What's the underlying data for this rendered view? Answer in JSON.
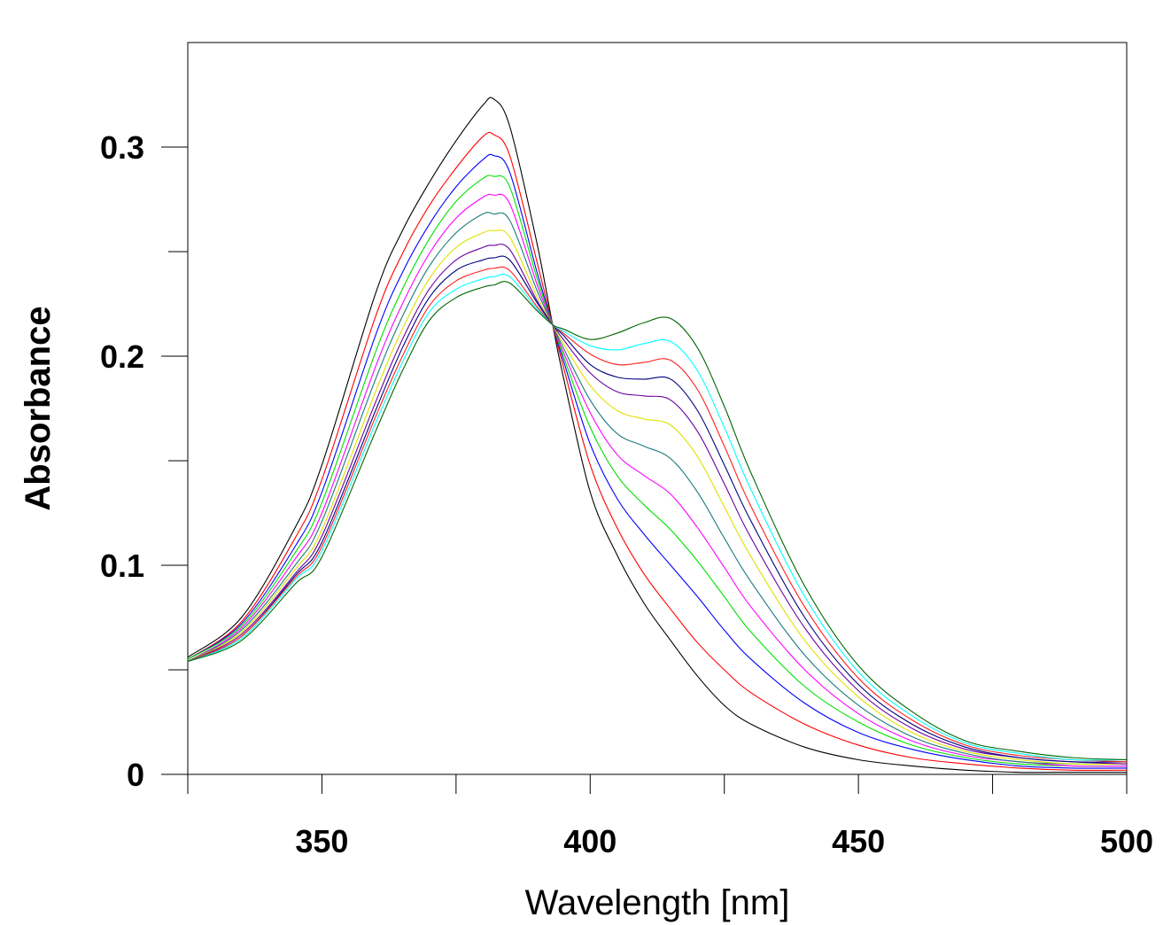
{
  "chart_data": {
    "type": "line",
    "title": "",
    "xlabel": "Wavelength [nm]",
    "ylabel": "Absorbance",
    "xlim": [
      325,
      500
    ],
    "ylim": [
      0,
      0.35
    ],
    "x_ticks": [
      350,
      400,
      450,
      500
    ],
    "x_tick_labels": [
      "350",
      "400",
      "450",
      "500"
    ],
    "y_ticks": [
      0,
      0.1,
      0.2,
      0.3
    ],
    "y_tick_labels": [
      "0",
      "0.1",
      "0.2",
      "0.3"
    ],
    "grid": false,
    "legend": "none",
    "x": [
      325,
      335,
      345,
      350,
      360,
      365,
      370,
      375,
      380,
      382,
      385,
      390,
      393,
      395,
      400,
      405,
      410,
      415,
      420,
      425,
      430,
      440,
      450,
      460,
      470,
      480,
      490,
      500
    ],
    "series": [
      {
        "color": "#000000",
        "values": [
          0.056,
          0.075,
          0.118,
          0.148,
          0.23,
          0.26,
          0.283,
          0.303,
          0.32,
          0.323,
          0.31,
          0.255,
          0.215,
          0.19,
          0.135,
          0.105,
          0.082,
          0.064,
          0.047,
          0.033,
          0.024,
          0.013,
          0.007,
          0.004,
          0.002,
          0.001,
          0.001,
          0.001
        ]
      },
      {
        "color": "#ff0000",
        "values": [
          0.055,
          0.073,
          0.113,
          0.141,
          0.219,
          0.249,
          0.272,
          0.29,
          0.305,
          0.306,
          0.296,
          0.246,
          0.215,
          0.195,
          0.148,
          0.118,
          0.096,
          0.079,
          0.063,
          0.05,
          0.039,
          0.024,
          0.014,
          0.008,
          0.005,
          0.003,
          0.002,
          0.002
        ]
      },
      {
        "color": "#0000ff",
        "values": [
          0.055,
          0.072,
          0.109,
          0.135,
          0.21,
          0.24,
          0.263,
          0.281,
          0.294,
          0.296,
          0.288,
          0.241,
          0.215,
          0.198,
          0.158,
          0.132,
          0.115,
          0.1,
          0.085,
          0.069,
          0.055,
          0.034,
          0.02,
          0.012,
          0.007,
          0.004,
          0.003,
          0.003
        ]
      },
      {
        "color": "#00e000",
        "values": [
          0.055,
          0.071,
          0.106,
          0.13,
          0.202,
          0.232,
          0.256,
          0.274,
          0.285,
          0.286,
          0.281,
          0.238,
          0.215,
          0.2,
          0.166,
          0.143,
          0.129,
          0.117,
          0.102,
          0.085,
          0.068,
          0.042,
          0.025,
          0.014,
          0.008,
          0.005,
          0.004,
          0.004
        ]
      },
      {
        "color": "#ff00ff",
        "values": [
          0.054,
          0.07,
          0.103,
          0.125,
          0.195,
          0.225,
          0.249,
          0.266,
          0.276,
          0.277,
          0.273,
          0.235,
          0.215,
          0.202,
          0.173,
          0.153,
          0.143,
          0.134,
          0.118,
          0.099,
          0.08,
          0.05,
          0.029,
          0.016,
          0.009,
          0.006,
          0.004,
          0.004
        ]
      },
      {
        "color": "#1a7a7a",
        "values": [
          0.054,
          0.069,
          0.1,
          0.121,
          0.189,
          0.219,
          0.243,
          0.259,
          0.268,
          0.268,
          0.265,
          0.232,
          0.215,
          0.204,
          0.179,
          0.163,
          0.157,
          0.151,
          0.135,
          0.113,
          0.092,
          0.057,
          0.033,
          0.018,
          0.01,
          0.006,
          0.005,
          0.005
        ]
      },
      {
        "color": "#e0e000",
        "values": [
          0.054,
          0.068,
          0.098,
          0.117,
          0.183,
          0.213,
          0.237,
          0.252,
          0.259,
          0.26,
          0.257,
          0.229,
          0.215,
          0.206,
          0.186,
          0.174,
          0.17,
          0.167,
          0.152,
          0.128,
          0.104,
          0.064,
          0.037,
          0.02,
          0.011,
          0.007,
          0.005,
          0.005
        ]
      },
      {
        "color": "#6a00a0",
        "values": [
          0.054,
          0.067,
          0.096,
          0.114,
          0.178,
          0.208,
          0.232,
          0.246,
          0.252,
          0.253,
          0.251,
          0.227,
          0.215,
          0.208,
          0.192,
          0.183,
          0.181,
          0.179,
          0.164,
          0.139,
          0.113,
          0.07,
          0.04,
          0.022,
          0.012,
          0.008,
          0.006,
          0.005
        ]
      },
      {
        "color": "#000080",
        "values": [
          0.054,
          0.066,
          0.095,
          0.111,
          0.174,
          0.204,
          0.228,
          0.241,
          0.246,
          0.247,
          0.246,
          0.226,
          0.215,
          0.21,
          0.196,
          0.19,
          0.189,
          0.189,
          0.174,
          0.148,
          0.121,
          0.075,
          0.043,
          0.024,
          0.013,
          0.008,
          0.006,
          0.006
        ]
      },
      {
        "color": "#ff2020",
        "values": [
          0.054,
          0.066,
          0.094,
          0.109,
          0.171,
          0.2,
          0.224,
          0.236,
          0.241,
          0.242,
          0.241,
          0.224,
          0.215,
          0.211,
          0.201,
          0.196,
          0.197,
          0.198,
          0.184,
          0.157,
          0.128,
          0.08,
          0.046,
          0.026,
          0.014,
          0.009,
          0.007,
          0.006
        ]
      },
      {
        "color": "#00ffff",
        "values": [
          0.054,
          0.065,
          0.093,
          0.107,
          0.168,
          0.197,
          0.221,
          0.232,
          0.237,
          0.238,
          0.238,
          0.223,
          0.215,
          0.212,
          0.205,
          0.203,
          0.206,
          0.207,
          0.193,
          0.166,
          0.136,
          0.085,
          0.049,
          0.028,
          0.015,
          0.01,
          0.007,
          0.007
        ]
      },
      {
        "color": "#006400",
        "values": [
          0.054,
          0.064,
          0.091,
          0.104,
          0.164,
          0.193,
          0.217,
          0.228,
          0.233,
          0.234,
          0.235,
          0.222,
          0.215,
          0.213,
          0.208,
          0.211,
          0.216,
          0.218,
          0.204,
          0.176,
          0.144,
          0.09,
          0.052,
          0.03,
          0.016,
          0.011,
          0.008,
          0.007
        ]
      }
    ]
  }
}
